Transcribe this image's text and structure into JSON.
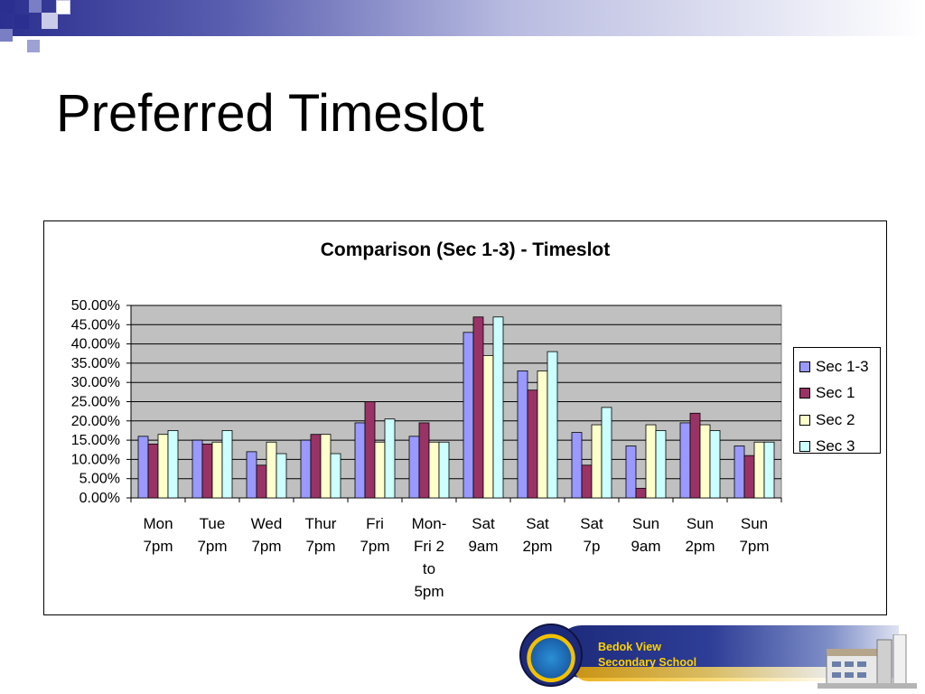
{
  "slide": {
    "title": "Preferred Timeslot"
  },
  "footer": {
    "school_name_line1": "Bedok View",
    "school_name_line2": "Secondary School"
  },
  "chart_data": {
    "type": "bar",
    "title": "Comparison (Sec 1-3) - Timeslot",
    "xlabel": "",
    "ylabel": "",
    "ylim": [
      0,
      0.5
    ],
    "y_tick_labels": [
      "0.00%",
      "5.00%",
      "10.00%",
      "15.00%",
      "20.00%",
      "25.00%",
      "30.00%",
      "35.00%",
      "40.00%",
      "45.00%",
      "50.00%"
    ],
    "grid": true,
    "legend_position": "right",
    "categories": [
      "Mon 7pm",
      "Tue 7pm",
      "Wed 7pm",
      "Thur 7pm",
      "Fri 7pm",
      "Mon-Fri 2 to 5pm",
      "Sat 9am",
      "Sat 2pm",
      "Sat 7p",
      "Sun 9am",
      "Sun 2pm",
      "Sun 7pm"
    ],
    "category_label_lines": [
      [
        "Mon",
        "7pm"
      ],
      [
        "Tue",
        "7pm"
      ],
      [
        "Wed",
        "7pm"
      ],
      [
        "Thur",
        "7pm"
      ],
      [
        "Fri",
        "7pm"
      ],
      [
        "Mon-",
        "Fri 2",
        "to",
        "5pm"
      ],
      [
        "Sat",
        "9am"
      ],
      [
        "Sat",
        "2pm"
      ],
      [
        "Sat",
        "7p"
      ],
      [
        "Sun",
        "9am"
      ],
      [
        "Sun",
        "2pm"
      ],
      [
        "Sun",
        "7pm"
      ]
    ],
    "series": [
      {
        "name": "Sec 1-3",
        "color": "#9999ff",
        "values": [
          0.16,
          0.15,
          0.12,
          0.15,
          0.195,
          0.16,
          0.43,
          0.33,
          0.17,
          0.135,
          0.195,
          0.135
        ]
      },
      {
        "name": "Sec 1",
        "color": "#993366",
        "values": [
          0.14,
          0.14,
          0.085,
          0.165,
          0.25,
          0.195,
          0.47,
          0.28,
          0.085,
          0.025,
          0.22,
          0.11
        ]
      },
      {
        "name": "Sec 2",
        "color": "#ffffcc",
        "values": [
          0.165,
          0.145,
          0.145,
          0.165,
          0.145,
          0.145,
          0.37,
          0.33,
          0.19,
          0.19,
          0.19,
          0.145
        ]
      },
      {
        "name": "Sec 3",
        "color": "#ccffff",
        "values": [
          0.175,
          0.175,
          0.115,
          0.115,
          0.205,
          0.145,
          0.47,
          0.38,
          0.235,
          0.175,
          0.175,
          0.145
        ]
      }
    ],
    "plot_background": "#c0c0c0"
  }
}
